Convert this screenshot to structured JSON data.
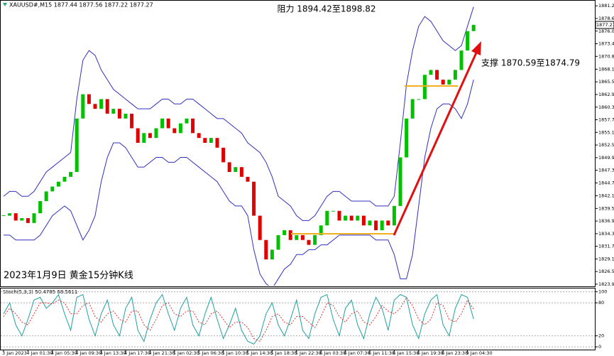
{
  "header": "XAUUSD#,M15 1877.44 1877.56 1877.22 1877.27",
  "chart_data": [
    {
      "type": "candlestick",
      "annotations": [
        "阻力 1894.42至1898.82",
        "支撑 1870.59至1874.79",
        "2023年1月9日 黄金15分钟K线"
      ],
      "categories": [
        "3 Jan 2023",
        null,
        null,
        null,
        "4 Jan 01:30",
        null,
        null,
        null,
        "4 Jan 05:30",
        null,
        null,
        null,
        "4 Jan 09:30",
        null,
        null,
        null,
        "4 Jan 13:30",
        null,
        null,
        null,
        "4 Jan 17:30",
        null,
        null,
        null,
        "4 Jan 21:30",
        null,
        null,
        null,
        "5 Jan 02:30",
        null,
        null,
        null,
        "5 Jan 06:30",
        null,
        null,
        null,
        "5 Jan 10:30",
        null,
        null,
        null,
        "5 Jan 14:30",
        null,
        null,
        null,
        "5 Jan 18:30",
        null,
        null,
        null,
        "5 Jan 22:30",
        null,
        null,
        null,
        "6 Jan 03:30",
        null,
        null,
        null,
        "6 Jan 07:30",
        null,
        null,
        null,
        "6 Jan 11:30",
        null,
        null,
        null,
        "6 Jan 15:30",
        null,
        null,
        null,
        "6 Jan 19:30",
        null,
        null,
        null,
        "6 Jan 23:30",
        null,
        null,
        null,
        "9 Jan 04:30",
        null
      ],
      "series": [
        {
          "color": "#00c000",
          "down_color": "#e00000",
          "values": [
            1838,
            1838.5,
            1837,
            1837.5,
            1836.5,
            1838.5,
            1841,
            1843,
            1844,
            1845,
            1846,
            1847,
            1858,
            1863,
            1861,
            1860,
            1862,
            1859,
            1860,
            1858,
            1859,
            1856,
            1853,
            1855,
            1854,
            1856,
            1858,
            1856,
            1855,
            1857,
            1858,
            1855,
            1854,
            1853,
            1854,
            1852,
            1849,
            1847,
            1848,
            1846,
            1845,
            1838,
            1833,
            1829,
            1831,
            1834,
            1835,
            1833,
            1834,
            1833,
            1832,
            1834,
            1836,
            1839,
            1839,
            1837,
            1838,
            1837,
            1838,
            1836,
            1837,
            1835,
            1837,
            1836,
            1840,
            1850,
            1858,
            1862,
            1862,
            1867,
            1868,
            1866,
            1865,
            1866,
            1868,
            1872,
            1876,
            1877.27
          ]
        },
        {
          "color": "#3030c0",
          "values": [
            1842,
            1843,
            1843,
            1842,
            1842,
            1843,
            1845,
            1847,
            1848,
            1849,
            1850,
            1851,
            1862,
            1870,
            1872,
            1871,
            1868,
            1866,
            1864,
            1863,
            1862,
            1861,
            1860,
            1860,
            1860,
            1861,
            1862,
            1862,
            1861,
            1861,
            1862,
            1862,
            1861,
            1860,
            1859,
            1858,
            1858,
            1857,
            1856,
            1855,
            1853,
            1852,
            1851,
            1849,
            1846,
            1842,
            1841,
            1840,
            1838,
            1837,
            1837,
            1838,
            1840,
            1842,
            1843,
            1843,
            1842,
            1841,
            1841,
            1841,
            1841,
            1840,
            1840,
            1840,
            1842,
            1853,
            1865,
            1872,
            1877,
            1879,
            1878,
            1876,
            1874,
            1873,
            1872,
            1873,
            1877,
            1881
          ]
        },
        {
          "color": "#3030c0",
          "values": [
            1834,
            1834,
            1833,
            1833,
            1833,
            1833,
            1834,
            1836,
            1838,
            1839,
            1840,
            1839,
            1836,
            1833,
            1835,
            1838,
            1845,
            1850,
            1853,
            1853,
            1852,
            1850,
            1848,
            1848,
            1849,
            1850,
            1850,
            1849,
            1849,
            1850,
            1850,
            1849,
            1848,
            1847,
            1846,
            1845,
            1843,
            1841,
            1840,
            1840,
            1838,
            1831,
            1826,
            1824,
            1823,
            1825,
            1827,
            1828,
            1830,
            1830,
            1831,
            1831,
            1832,
            1832,
            1833,
            1834,
            1834,
            1834,
            1834,
            1834,
            1834,
            1833,
            1833,
            1833,
            1830,
            1825,
            1825,
            1830,
            1840,
            1850,
            1856,
            1860,
            1861,
            1861,
            1860,
            1858,
            1861,
            1866
          ]
        }
      ],
      "ylim": [
        1823.6,
        1882.4
      ],
      "yticks": [
        {
          "value": 1881.2,
          "label": "1881.20"
        },
        {
          "value": 1878.6,
          "label": "1878.60"
        },
        {
          "value": 1876,
          "label": "1876.00"
        },
        {
          "value": 1873.4,
          "label": "1873.40"
        },
        {
          "value": 1870.8,
          "label": "1870.80"
        },
        1868.15,
        1865.55,
        1862.95,
        1860.35,
        1857.75,
        1855.15,
        1852.55,
        1849.95,
        1847.35,
        1844.75,
        {
          "value": 1842.1,
          "label": "1842.10"
        },
        {
          "value": 1839.5,
          "label": "1839.50"
        },
        {
          "value": 1836.9,
          "label": "1836.90"
        },
        {
          "value": 1834.3,
          "label": "1834.30"
        },
        {
          "value": 1831.7,
          "label": "1831.70"
        },
        {
          "value": 1829.1,
          "label": "1829.10"
        },
        {
          "value": 1826.5,
          "label": "1826.50"
        },
        {
          "value": 1823.9,
          "label": "1823.90"
        }
      ]
    },
    {
      "type": "line",
      "title": "Stoch(5,3,3) 50.4785 68.5611",
      "series": [
        {
          "color": "#20a0a0",
          "values": [
            60,
            80,
            40,
            20,
            50,
            85,
            90,
            70,
            80,
            95,
            60,
            30,
            90,
            95,
            50,
            20,
            60,
            85,
            40,
            20,
            70,
            90,
            30,
            10,
            50,
            80,
            95,
            60,
            30,
            70,
            90,
            40,
            20,
            60,
            90,
            50,
            15,
            40,
            70,
            30,
            10,
            5,
            20,
            60,
            80,
            40,
            20,
            50,
            85,
            30,
            15,
            60,
            90,
            95,
            50,
            20,
            70,
            85,
            40,
            15,
            60,
            90,
            70,
            30,
            85,
            95,
            90,
            40,
            15,
            60,
            85,
            95,
            40,
            20,
            70,
            95,
            90,
            50.4785
          ]
        },
        {
          "color": "#e03030",
          "dashed": true,
          "values": [
            55,
            70,
            60,
            45,
            40,
            60,
            80,
            80,
            78,
            85,
            80,
            60,
            60,
            75,
            80,
            55,
            45,
            60,
            65,
            50,
            45,
            65,
            65,
            40,
            30,
            50,
            75,
            80,
            60,
            55,
            65,
            65,
            45,
            40,
            60,
            65,
            50,
            35,
            45,
            45,
            35,
            15,
            10,
            30,
            55,
            60,
            45,
            40,
            55,
            55,
            45,
            35,
            55,
            80,
            75,
            55,
            45,
            60,
            65,
            45,
            40,
            55,
            75,
            65,
            60,
            70,
            90,
            75,
            50,
            40,
            50,
            80,
            75,
            50,
            45,
            60,
            85,
            68.5611
          ]
        }
      ],
      "ylim": [
        -5,
        106
      ],
      "yticks": [
        0,
        20,
        80,
        100
      ],
      "grid": true
    }
  ]
}
